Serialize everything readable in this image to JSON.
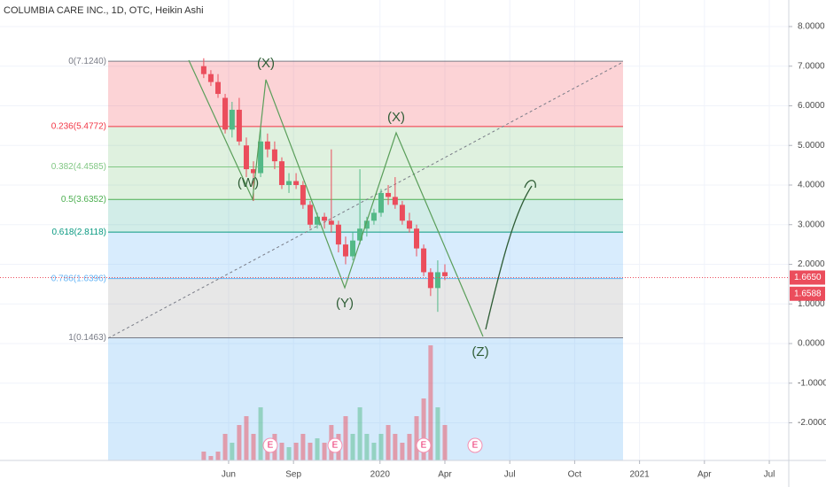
{
  "chart_data": {
    "type": "candlestick",
    "title": "COLUMBIA CARE INC., 1D, OTC, Heikin Ashi",
    "xlim": [
      -5.57,
      30.9
    ],
    "xticks": [
      {
        "value": 5,
        "label": "Jun"
      },
      {
        "value": 8,
        "label": "Sep"
      },
      {
        "value": 12,
        "label": "2020"
      },
      {
        "value": 15,
        "label": "Apr"
      },
      {
        "value": 18,
        "label": "Jul"
      },
      {
        "value": 21,
        "label": "Oct"
      },
      {
        "value": 24,
        "label": "2021"
      },
      {
        "value": 27,
        "label": "Apr"
      },
      {
        "value": 30,
        "label": "Jul"
      }
    ],
    "ylim": [
      -2.95,
      8.67
    ],
    "yticks": [
      {
        "value": 8,
        "label": "8.0000"
      },
      {
        "value": 7,
        "label": "7.0000"
      },
      {
        "value": 6,
        "label": "6.0000"
      },
      {
        "value": 5,
        "label": "5.0000"
      },
      {
        "value": 4,
        "label": "4.0000"
      },
      {
        "value": 3,
        "label": "3.0000"
      },
      {
        "value": 2,
        "label": "2.0000"
      },
      {
        "value": 1,
        "label": "1.0000"
      },
      {
        "value": 0,
        "label": "0.0000"
      },
      {
        "value": -1,
        "label": "-1.0000"
      },
      {
        "value": -2,
        "label": "-2.0000"
      }
    ],
    "grid": true,
    "up_color": "#53b987",
    "down_color": "#eb4d5c",
    "x": [
      3.85,
      4.18,
      4.51,
      4.84,
      5.16,
      5.49,
      5.82,
      6.15,
      6.48,
      6.8,
      7.13,
      7.46,
      7.79,
      8.12,
      8.44,
      8.77,
      9.1,
      9.43,
      9.75,
      10.08,
      10.41,
      10.74,
      11.07,
      11.39,
      11.72,
      12.05,
      12.38,
      12.7,
      13.03,
      13.36,
      13.69,
      14.02,
      14.34,
      14.67,
      15.0
    ],
    "open": [
      7.0,
      6.8,
      6.6,
      6.2,
      5.4,
      5.9,
      5.0,
      4.4,
      4.3,
      5.1,
      4.9,
      4.6,
      4.0,
      4.1,
      4.0,
      3.5,
      3.0,
      3.2,
      3.1,
      3.0,
      2.5,
      2.2,
      2.6,
      2.9,
      3.1,
      3.3,
      3.8,
      3.7,
      3.5,
      3.1,
      2.9,
      2.4,
      1.8,
      1.4,
      1.8
    ],
    "high": [
      7.2,
      6.9,
      6.8,
      6.3,
      6.1,
      6.2,
      5.2,
      4.6,
      5.4,
      5.3,
      5.1,
      4.7,
      4.3,
      4.3,
      4.1,
      3.6,
      3.3,
      3.3,
      4.9,
      3.1,
      2.7,
      2.8,
      4.4,
      3.2,
      3.4,
      3.9,
      4.0,
      4.2,
      3.6,
      3.3,
      3.0,
      2.5,
      1.9,
      2.1,
      2.0
    ],
    "low": [
      6.7,
      6.5,
      6.2,
      5.3,
      5.2,
      5.0,
      4.2,
      3.6,
      4.2,
      4.7,
      4.4,
      3.9,
      3.8,
      3.9,
      3.4,
      2.9,
      2.9,
      2.9,
      2.8,
      2.3,
      2.0,
      2.1,
      2.5,
      2.7,
      3.0,
      3.2,
      3.5,
      3.4,
      3.0,
      2.8,
      2.2,
      1.7,
      1.2,
      0.8,
      1.6
    ],
    "close": [
      6.8,
      6.6,
      6.3,
      5.4,
      5.9,
      5.1,
      4.4,
      4.3,
      5.1,
      4.9,
      4.6,
      4.0,
      4.1,
      4.0,
      3.5,
      3.0,
      3.2,
      3.1,
      3.0,
      2.5,
      2.2,
      2.6,
      2.9,
      3.1,
      3.3,
      3.8,
      3.7,
      3.5,
      3.1,
      2.9,
      2.4,
      1.8,
      1.4,
      1.8,
      1.7
    ],
    "volume": [
      0.1,
      0.05,
      0.1,
      0.3,
      0.2,
      0.4,
      0.5,
      0.3,
      0.6,
      0.2,
      0.3,
      0.2,
      0.15,
      0.2,
      0.3,
      0.2,
      0.25,
      0.2,
      0.4,
      0.3,
      0.5,
      0.3,
      0.6,
      0.3,
      0.2,
      0.3,
      0.4,
      0.3,
      0.2,
      0.3,
      0.5,
      0.7,
      1.3,
      0.6,
      0.4
    ],
    "fib_levels": [
      {
        "label": "0(7.1240)",
        "value": 7.124,
        "color": "#787b86",
        "zone": "rgba(242,54,69,0.22)"
      },
      {
        "label": "0.236(5.4772)",
        "value": 5.4772,
        "color": "#f23645",
        "zone": "rgba(76,175,80,0.18)"
      },
      {
        "label": "0.382(4.4585)",
        "value": 4.4585,
        "color": "#81c784",
        "zone": "rgba(76,175,80,0.18)"
      },
      {
        "label": "0.5(3.6352)",
        "value": 3.6352,
        "color": "#4caf50",
        "zone": "rgba(8,153,129,0.18)"
      },
      {
        "label": "0.618(2.8118)",
        "value": 2.8118,
        "color": "#089981",
        "zone": "rgba(100,181,246,0.25)"
      },
      {
        "label": "0.786(1.6396)",
        "value": 1.6396,
        "color": "#64b5f6",
        "zone": "rgba(160,160,160,0.25)"
      },
      {
        "label": "1(0.1463)",
        "value": 0.1463,
        "color": "#787b86",
        "zone": "rgba(100,181,246,0.28)"
      }
    ],
    "price_labels": [
      {
        "value": 1.665,
        "label": "1.6650"
      },
      {
        "value": 1.6588,
        "label": "1.6588"
      }
    ],
    "wave_labels": [
      "(X)",
      "(W)",
      "(X)",
      "(Y)",
      "(Z)"
    ],
    "events": [
      "E",
      "E",
      "E",
      "E"
    ]
  }
}
